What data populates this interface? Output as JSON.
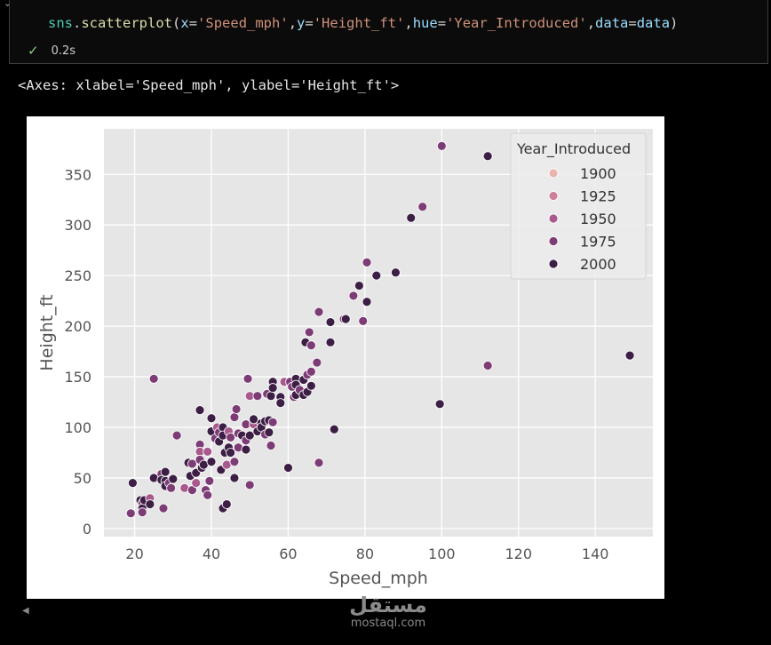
{
  "code_cell": {
    "code_parts": [
      {
        "cls": "c-id",
        "text": "sns"
      },
      {
        "cls": "c-op",
        "text": "."
      },
      {
        "cls": "c-fn",
        "text": "scatterplot"
      },
      {
        "cls": "c-op",
        "text": "("
      },
      {
        "cls": "c-kw",
        "text": "x"
      },
      {
        "cls": "c-op",
        "text": "="
      },
      {
        "cls": "c-str",
        "text": "'Speed_mph'"
      },
      {
        "cls": "c-op",
        "text": ","
      },
      {
        "cls": "c-kw",
        "text": "y"
      },
      {
        "cls": "c-op",
        "text": "="
      },
      {
        "cls": "c-str",
        "text": "'Height_ft'"
      },
      {
        "cls": "c-op",
        "text": ","
      },
      {
        "cls": "c-kw",
        "text": "hue"
      },
      {
        "cls": "c-op",
        "text": "="
      },
      {
        "cls": "c-str",
        "text": "'Year_Introduced'"
      },
      {
        "cls": "c-op",
        "text": ","
      },
      {
        "cls": "c-kw",
        "text": "data"
      },
      {
        "cls": "c-op",
        "text": "="
      },
      {
        "cls": "c-kw",
        "text": "data"
      },
      {
        "cls": "c-op",
        "text": ")"
      }
    ],
    "exec_time": "0.2s",
    "status_icon": "check-icon"
  },
  "output_text": "<Axes: xlabel='Speed_mph', ylabel='Height_ft'>",
  "watermark": {
    "arabic": "مستقل",
    "latin": "mostaql.com"
  },
  "chart_data": {
    "type": "scatter",
    "xlabel": "Speed_mph",
    "ylabel": "Height_ft",
    "xlim": [
      12,
      155
    ],
    "ylim": [
      -8,
      395
    ],
    "xticks": [
      20,
      40,
      60,
      80,
      100,
      120,
      140
    ],
    "yticks": [
      0,
      50,
      100,
      150,
      200,
      250,
      300,
      350
    ],
    "grid": true,
    "legend": {
      "title": "Year_Introduced",
      "placement": "top-right",
      "entries": [
        {
          "label": "1900",
          "color": "#e8b4ad"
        },
        {
          "label": "1925",
          "color": "#cf7e97"
        },
        {
          "label": "1950",
          "color": "#a85a8c"
        },
        {
          "label": "1975",
          "color": "#7d3c75"
        },
        {
          "label": "2000",
          "color": "#3d1f45"
        }
      ]
    },
    "points": [
      [
        19,
        15,
        1975
      ],
      [
        19.5,
        45,
        2000
      ],
      [
        21.5,
        28,
        2000
      ],
      [
        22,
        25,
        1975
      ],
      [
        22,
        20,
        2000
      ],
      [
        22,
        16,
        1975
      ],
      [
        22.5,
        28,
        2000
      ],
      [
        24,
        30,
        1950
      ],
      [
        24,
        24,
        2000
      ],
      [
        25,
        148,
        1975
      ],
      [
        25,
        50,
        2000
      ],
      [
        27,
        54,
        1975
      ],
      [
        27,
        48,
        2000
      ],
      [
        27.5,
        20,
        1975
      ],
      [
        28,
        56,
        2000
      ],
      [
        28,
        47,
        2000
      ],
      [
        28,
        42,
        2000
      ],
      [
        29,
        45,
        1975
      ],
      [
        29.5,
        40,
        1975
      ],
      [
        30,
        49,
        2000
      ],
      [
        31,
        92,
        1975
      ],
      [
        33,
        40,
        1950
      ],
      [
        34,
        65,
        2000
      ],
      [
        34.5,
        52,
        2000
      ],
      [
        35,
        38,
        1975
      ],
      [
        35,
        64,
        1975
      ],
      [
        36,
        55,
        2000
      ],
      [
        36,
        45,
        1950
      ],
      [
        37,
        117,
        2000
      ],
      [
        37,
        83,
        1975
      ],
      [
        37,
        76,
        1950
      ],
      [
        37,
        68,
        1975
      ],
      [
        37.5,
        60,
        2000
      ],
      [
        38,
        63,
        2000
      ],
      [
        38.5,
        38,
        1975
      ],
      [
        39,
        76,
        1950
      ],
      [
        39,
        33,
        1975
      ],
      [
        39.5,
        47,
        1975
      ],
      [
        40,
        66,
        2000
      ],
      [
        40,
        96,
        2000
      ],
      [
        40,
        109,
        2000
      ],
      [
        41,
        89,
        1975
      ],
      [
        41.5,
        100,
        1950
      ],
      [
        42,
        95,
        1975
      ],
      [
        42,
        86,
        2000
      ],
      [
        42.5,
        58,
        2000
      ],
      [
        43,
        100,
        2000
      ],
      [
        43,
        92,
        2000
      ],
      [
        43,
        20,
        2000
      ],
      [
        43.5,
        75,
        2000
      ],
      [
        44,
        63,
        1950
      ],
      [
        44,
        24,
        2000
      ],
      [
        44.5,
        96,
        1950
      ],
      [
        44.5,
        80,
        2000
      ],
      [
        45,
        75,
        2000
      ],
      [
        45,
        90,
        1975
      ],
      [
        46,
        66,
        1975
      ],
      [
        46,
        110,
        1975
      ],
      [
        46,
        50,
        2000
      ],
      [
        46.5,
        118,
        1975
      ],
      [
        47,
        94,
        1975
      ],
      [
        47,
        80,
        1975
      ],
      [
        48,
        92,
        2000
      ],
      [
        49,
        103,
        1975
      ],
      [
        49,
        87,
        1975
      ],
      [
        49,
        78,
        2000
      ],
      [
        49.5,
        148,
        1975
      ],
      [
        50,
        131,
        1950
      ],
      [
        50,
        43,
        1975
      ],
      [
        50,
        92,
        2000
      ],
      [
        51,
        103,
        1950
      ],
      [
        51,
        108,
        2000
      ],
      [
        52,
        96,
        2000
      ],
      [
        52,
        131,
        1975
      ],
      [
        53,
        104,
        2000
      ],
      [
        53,
        100,
        2000
      ],
      [
        54,
        106,
        2000
      ],
      [
        54,
        93,
        1975
      ],
      [
        54.5,
        133,
        1975
      ],
      [
        55,
        95,
        2000
      ],
      [
        55,
        107,
        2000
      ],
      [
        55.5,
        82,
        1975
      ],
      [
        55.5,
        131,
        2000
      ],
      [
        56,
        145,
        2000
      ],
      [
        56,
        139,
        2000
      ],
      [
        56,
        105,
        1975
      ],
      [
        58,
        130,
        2000
      ],
      [
        58,
        124,
        2000
      ],
      [
        59,
        145,
        1950
      ],
      [
        60,
        60,
        2000
      ],
      [
        60.5,
        145,
        1975
      ],
      [
        61,
        140,
        1975
      ],
      [
        61.5,
        130,
        1975
      ],
      [
        62,
        148,
        2000
      ],
      [
        62,
        142,
        2000
      ],
      [
        62,
        132,
        2000
      ],
      [
        63,
        137,
        1975
      ],
      [
        64,
        147,
        2000
      ],
      [
        64,
        132,
        2000
      ],
      [
        64.5,
        184,
        2000
      ],
      [
        65,
        152,
        1975
      ],
      [
        65,
        135,
        2000
      ],
      [
        65.5,
        194,
        1975
      ],
      [
        66,
        181,
        1975
      ],
      [
        66,
        141,
        2000
      ],
      [
        66,
        155,
        1975
      ],
      [
        67.5,
        164,
        1975
      ],
      [
        68,
        214,
        1975
      ],
      [
        68,
        65,
        1975
      ],
      [
        71,
        204,
        2000
      ],
      [
        71,
        184,
        2000
      ],
      [
        72,
        98,
        2000
      ],
      [
        74.5,
        207,
        1975
      ],
      [
        75,
        207,
        2000
      ],
      [
        77,
        230,
        1975
      ],
      [
        78.5,
        240,
        2000
      ],
      [
        79.5,
        205,
        1975
      ],
      [
        80.5,
        263,
        1975
      ],
      [
        80.5,
        224,
        2000
      ],
      [
        83,
        250,
        2000
      ],
      [
        88,
        253,
        2000
      ],
      [
        92,
        307,
        2000
      ],
      [
        95,
        318,
        1975
      ],
      [
        99.5,
        123,
        2000
      ],
      [
        100,
        378,
        1975
      ],
      [
        112,
        368,
        2000
      ],
      [
        112,
        161,
        1975
      ],
      [
        149,
        171,
        2000
      ]
    ]
  }
}
